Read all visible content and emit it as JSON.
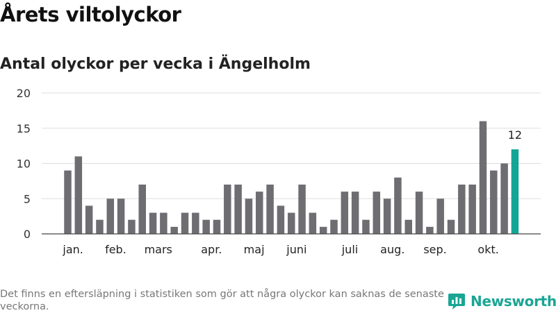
{
  "title": "Årets viltolyckor",
  "subtitle": "Antal olyckor per vecka i Ängelholm",
  "footnote": "Det finns en eftersläpning i statistiken som gör att några olyckor kan saknas de senaste veckorna.",
  "brand": {
    "name": "Newsworthy",
    "icon": "newsworthy-logo-icon",
    "color": "#1aa594"
  },
  "colors": {
    "bar": "#6e6d72",
    "highlight": "#12a595",
    "grid": "#dddddd",
    "axis": "#444444"
  },
  "chart_data": {
    "type": "bar",
    "title": "Antal olyckor per vecka i Ängelholm",
    "xlabel": "",
    "ylabel": "",
    "ylim": [
      0,
      20
    ],
    "yticks": [
      0,
      5,
      10,
      15,
      20
    ],
    "grid": true,
    "values": [
      9,
      11,
      4,
      2,
      5,
      5,
      2,
      7,
      3,
      3,
      1,
      3,
      3,
      2,
      2,
      7,
      7,
      5,
      6,
      7,
      4,
      3,
      7,
      3,
      1,
      2,
      6,
      6,
      2,
      6,
      5,
      8,
      2,
      6,
      1,
      5,
      2,
      7,
      7,
      16,
      9,
      10,
      12
    ],
    "highlight_index": 42,
    "highlight_label": "12",
    "month_labels": [
      {
        "label": "jan.",
        "week_index": 0.5
      },
      {
        "label": "feb.",
        "week_index": 4.5
      },
      {
        "label": "mars",
        "week_index": 8.5
      },
      {
        "label": "apr.",
        "week_index": 13.5
      },
      {
        "label": "maj",
        "week_index": 17.5
      },
      {
        "label": "juni",
        "week_index": 21.5
      },
      {
        "label": "juli",
        "week_index": 26.5
      },
      {
        "label": "aug.",
        "week_index": 30.5
      },
      {
        "label": "sep.",
        "week_index": 34.5
      },
      {
        "label": "okt.",
        "week_index": 39.5
      }
    ]
  }
}
